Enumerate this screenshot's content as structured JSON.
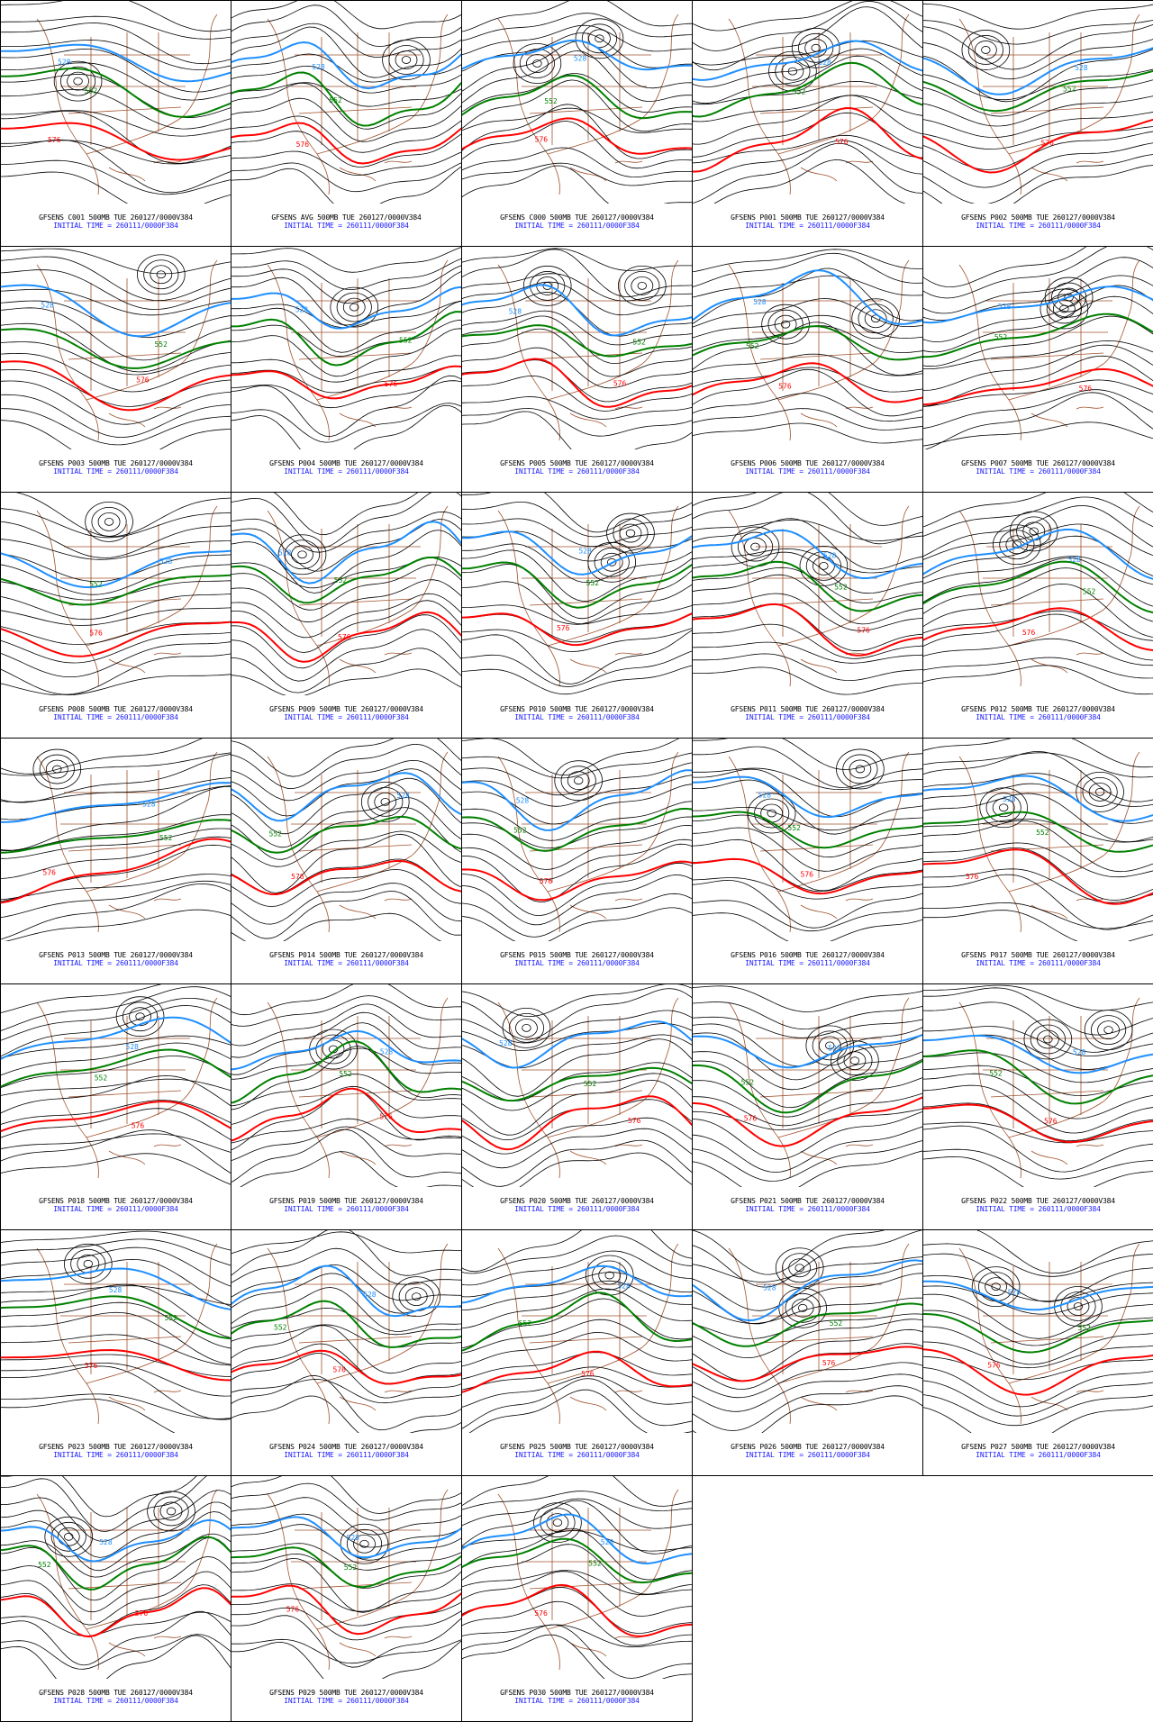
{
  "colors": {
    "height_contour": "#000000",
    "contour_528": "#1e8fff",
    "contour_552": "#008000",
    "contour_576": "#ff0000",
    "coastline": "#a0522d",
    "caption_line1": "#000000",
    "caption_line2": "#0000ff"
  },
  "contour_labels": {
    "c528": "528",
    "c552": "552",
    "c576": "576"
  },
  "panels": [
    {
      "line1": "GFSENS C001 500MB TUE 260127/0000V384",
      "line2": "INITIAL TIME = 260111/0000F384"
    },
    {
      "line1": "GFSENS AVG 500MB TUE 260127/0000V384",
      "line2": "INITIAL TIME = 260111/0000F384"
    },
    {
      "line1": "GFSENS C000 500MB TUE 260127/0000V384",
      "line2": "INITIAL TIME = 260111/0000F384"
    },
    {
      "line1": "GFSENS P001 500MB TUE 260127/0000V384",
      "line2": "INITIAL TIME = 260111/0000F384"
    },
    {
      "line1": "GFSENS P002 500MB TUE 260127/0000V384",
      "line2": "INITIAL TIME = 260111/0000F384"
    },
    {
      "line1": "GFSENS P003 500MB TUE 260127/0000V384",
      "line2": "INITIAL TIME = 260111/0000F384"
    },
    {
      "line1": "GFSENS P004 500MB TUE 260127/0000V384",
      "line2": "INITIAL TIME = 260111/0000F384"
    },
    {
      "line1": "GFSENS P005 500MB TUE 260127/0000V384",
      "line2": "INITIAL TIME = 260111/0000F384"
    },
    {
      "line1": "GFSENS P006 500MB TUE 260127/0000V384",
      "line2": "INITIAL TIME = 260111/0000F384"
    },
    {
      "line1": "GFSENS P007 500MB TUE 260127/0000V384",
      "line2": "INITIAL TIME = 260111/0000F384"
    },
    {
      "line1": "GFSENS P008 500MB TUE 260127/0000V384",
      "line2": "INITIAL TIME = 260111/0000F384"
    },
    {
      "line1": "GFSENS P009 500MB TUE 260127/0000V384",
      "line2": "INITIAL TIME = 260111/0000F384"
    },
    {
      "line1": "GFSENS P010 500MB TUE 260127/0000V384",
      "line2": "INITIAL TIME = 260111/0000F384"
    },
    {
      "line1": "GFSENS P011 500MB TUE 260127/0000V384",
      "line2": "INITIAL TIME = 260111/0000F384"
    },
    {
      "line1": "GFSENS P012 500MB TUE 260127/0000V384",
      "line2": "INITIAL TIME = 260111/0000F384"
    },
    {
      "line1": "GFSENS P013 500MB TUE 260127/0000V384",
      "line2": "INITIAL TIME = 260111/0000F384"
    },
    {
      "line1": "GFSENS P014 500MB TUE 260127/0000V384",
      "line2": "INITIAL TIME = 260111/0000F384"
    },
    {
      "line1": "GFSENS P015 500MB TUE 260127/0000V384",
      "line2": "INITIAL TIME = 260111/0000F384"
    },
    {
      "line1": "GFSENS P016 500MB TUE 260127/0000V384",
      "line2": "INITIAL TIME = 260111/0000F384"
    },
    {
      "line1": "GFSENS P017 500MB TUE 260127/0000V384",
      "line2": "INITIAL TIME = 260111/0000F384"
    },
    {
      "line1": "GFSENS P018 500MB TUE 260127/0000V384",
      "line2": "INITIAL TIME = 260111/0000F384"
    },
    {
      "line1": "GFSENS P019 500MB TUE 260127/0000V384",
      "line2": "INITIAL TIME = 260111/0000F384"
    },
    {
      "line1": "GFSENS P020 500MB TUE 260127/0000V384",
      "line2": "INITIAL TIME = 260111/0000F384"
    },
    {
      "line1": "GFSENS P021 500MB TUE 260127/0000V384",
      "line2": "INITIAL TIME = 260111/0000F384"
    },
    {
      "line1": "GFSENS P022 500MB TUE 260127/0000V384",
      "line2": "INITIAL TIME = 260111/0000F384"
    },
    {
      "line1": "GFSENS P023 500MB TUE 260127/0000V384",
      "line2": "INITIAL TIME = 260111/0000F384"
    },
    {
      "line1": "GFSENS P024 500MB TUE 260127/0000V384",
      "line2": "INITIAL TIME = 260111/0000F384"
    },
    {
      "line1": "GFSENS P025 500MB TUE 260127/0000V384",
      "line2": "INITIAL TIME = 260111/0000F384"
    },
    {
      "line1": "GFSENS P026 500MB TUE 260127/0000V384",
      "line2": "INITIAL TIME = 260111/0000F384"
    },
    {
      "line1": "GFSENS P027 500MB TUE 260127/0000V384",
      "line2": "INITIAL TIME = 260111/0000F384"
    },
    {
      "line1": "GFSENS P028 500MB TUE 260127/0000V384",
      "line2": "INITIAL TIME = 260111/0000F384"
    },
    {
      "line1": "GFSENS P029 500MB TUE 260127/0000V384",
      "line2": "INITIAL TIME = 260111/0000F384"
    },
    {
      "line1": "GFSENS P030 500MB TUE 260127/0000V384",
      "line2": "INITIAL TIME = 260111/0000F384"
    }
  ]
}
